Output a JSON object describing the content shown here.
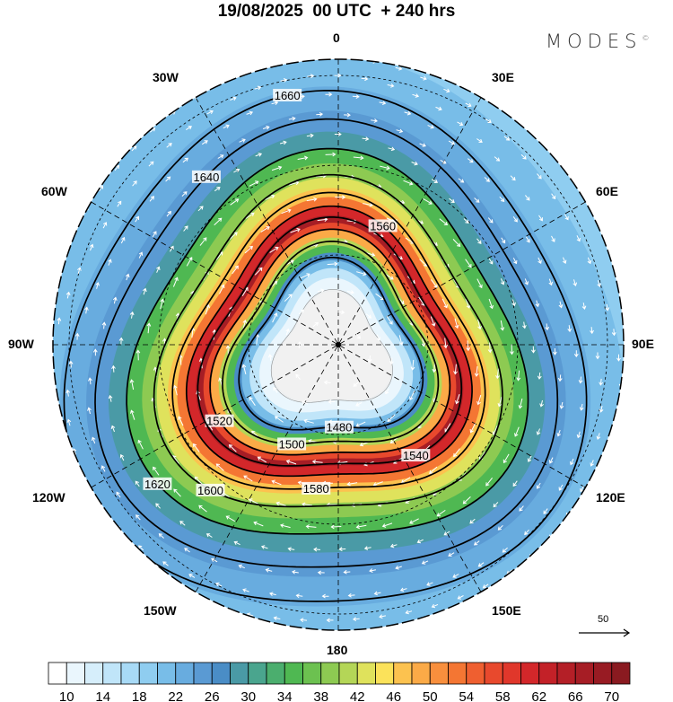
{
  "title": "19/08/2025  00 UTC  + 240 hrs",
  "logo": {
    "text": "MODES",
    "mark": "©"
  },
  "longitude_labels": {
    "n0": "0",
    "e30": "30E",
    "e60": "60E",
    "e90": "90E",
    "e120": "120E",
    "e150": "150E",
    "s180": "180",
    "w150": "150W",
    "w120": "120W",
    "w90": "90W",
    "w60": "60W",
    "w30": "30W"
  },
  "contour_values": [
    1480,
    1500,
    1520,
    1540,
    1560,
    1580,
    1600,
    1620,
    1640,
    1660
  ],
  "reference_vector": {
    "label": "50"
  },
  "colorbar": {
    "labels": [
      "10",
      "14",
      "18",
      "22",
      "26",
      "30",
      "34",
      "38",
      "42",
      "46",
      "50",
      "54",
      "58",
      "62",
      "66",
      "70"
    ],
    "colors": [
      "#ffffff",
      "#eaf6fd",
      "#d6eefb",
      "#c0e5f9",
      "#a8daf6",
      "#8fcdf0",
      "#78bde8",
      "#68acdf",
      "#5a9ad3",
      "#4a8dc6",
      "#4a9aa6",
      "#4aa58e",
      "#4bae6e",
      "#4fb852",
      "#6cc150",
      "#8dca52",
      "#b4d657",
      "#dfe25c",
      "#fbe25a",
      "#fcc24f",
      "#fbaa47",
      "#f88f3d",
      "#f47633",
      "#ef5f30",
      "#e8492d",
      "#e0372b",
      "#d3272a",
      "#c32128",
      "#b41f27",
      "#a61d25",
      "#981b23",
      "#8a1a20"
    ]
  }
}
